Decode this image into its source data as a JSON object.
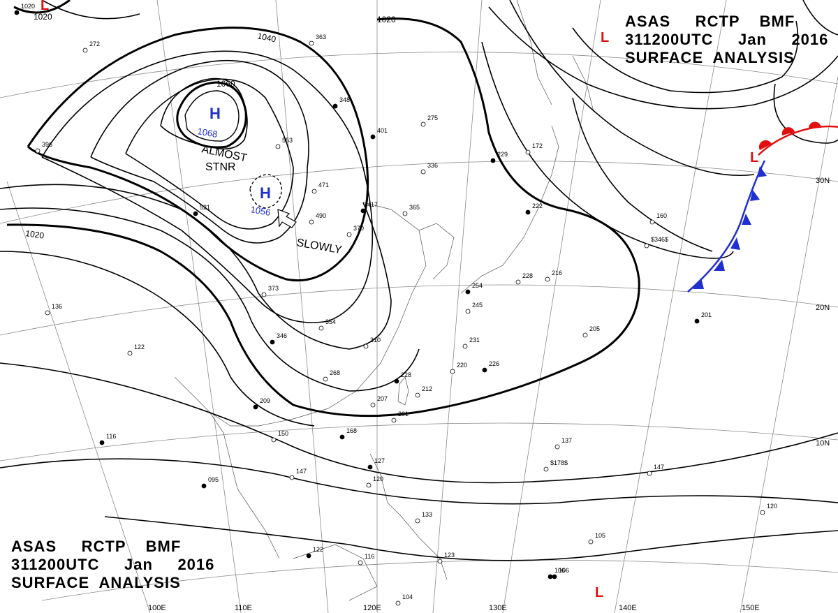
{
  "header": {
    "line1": "ASAS     RCTP    BMF",
    "line2": "311200UTC     Jan     2016",
    "line3": "SURFACE  ANALYSIS"
  },
  "footer": {
    "line1": "ASAS     RCTP    BMF",
    "line2": "311200UTC     Jan     2016",
    "line3": "SURFACE  ANALYSIS"
  },
  "isobar_labels": [
    "1020",
    "1020",
    "1040",
    "1060",
    "1020"
  ],
  "pressure_centers": [
    {
      "type": "H",
      "value": "1068",
      "color": "#1f2fd0"
    },
    {
      "type": "H",
      "value": "1056",
      "color": "#1f2fd0"
    },
    {
      "type": "L",
      "value": "",
      "color": "#e01010"
    },
    {
      "type": "L",
      "value": "",
      "color": "#e01010"
    },
    {
      "type": "L",
      "value": "",
      "color": "#e01010"
    },
    {
      "type": "L",
      "value": "",
      "color": "#e01010"
    }
  ],
  "annotations": [
    "ALMOST",
    "STNR",
    "SLOWLY"
  ],
  "latitude_labels": [
    "30N",
    "20N",
    "10N"
  ],
  "longitude_labels": [
    "100E",
    "110E",
    "120E",
    "130E",
    "140E",
    "150E"
  ],
  "station_plots": [
    "1020",
    "272",
    "396",
    "348",
    "363",
    "275",
    "401",
    "336",
    "365",
    "417",
    "471",
    "490",
    "521",
    "553",
    "370",
    "229",
    "172",
    "160",
    "222",
    "228",
    "216",
    "254",
    "245",
    "231",
    "226",
    "220",
    "212",
    "228",
    "310",
    "354",
    "346",
    "373",
    "268",
    "209",
    "207",
    "201",
    "168",
    "150",
    "147",
    "095",
    "137",
    "147",
    "127",
    "120",
    "133",
    "122",
    "116",
    "123",
    "106",
    "104",
    "105",
    "106",
    "120",
    "205",
    "201",
    "136",
    "122",
    "116",
    "$346$",
    "$178$"
  ],
  "colors": {
    "isobar": "#000000",
    "high": "#1f2fd0",
    "low": "#e01010",
    "cold_front": "#1f2fd0",
    "warm_front": "#e01010",
    "grid": "#888888"
  }
}
